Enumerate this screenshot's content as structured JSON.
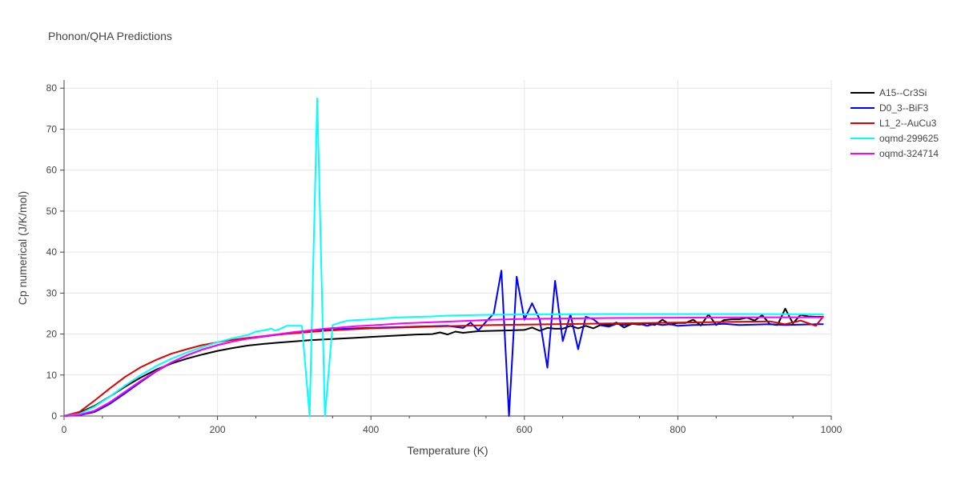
{
  "chart_data": {
    "type": "line",
    "title": "Phonon/QHA Predictions",
    "xlabel": "Temperature (K)",
    "ylabel": "Cp numerical (J/K/mol)",
    "xlim": [
      0,
      1000
    ],
    "ylim": [
      0,
      82
    ],
    "x_ticks": [
      0,
      200,
      400,
      600,
      800,
      1000
    ],
    "y_ticks": [
      0,
      10,
      20,
      30,
      40,
      50,
      60,
      70,
      80
    ],
    "grid": true,
    "legend_position": "top-right outside",
    "series": [
      {
        "name": "A15--Cr3Si",
        "color": "#000000",
        "x": [
          0,
          20,
          40,
          60,
          80,
          100,
          120,
          140,
          160,
          180,
          200,
          220,
          240,
          260,
          280,
          300,
          320,
          340,
          360,
          380,
          400,
          420,
          440,
          460,
          480,
          490,
          500,
          510,
          520,
          530,
          540,
          560,
          580,
          600,
          610,
          620,
          630,
          640,
          650,
          660,
          670,
          680,
          690,
          700,
          710,
          720,
          730,
          740,
          750,
          760,
          770,
          780,
          790,
          800,
          810,
          820,
          830,
          840,
          850,
          860,
          870,
          880,
          890,
          900,
          910,
          920,
          930,
          940,
          950,
          960,
          970,
          980,
          990
        ],
        "values": [
          0,
          0.8,
          2.5,
          4.8,
          7.2,
          9.4,
          11.3,
          12.8,
          14.0,
          15.0,
          15.9,
          16.6,
          17.2,
          17.6,
          17.9,
          18.2,
          18.5,
          18.7,
          18.9,
          19.1,
          19.3,
          19.5,
          19.7,
          19.9,
          20.0,
          20.4,
          19.9,
          20.6,
          20.3,
          20.5,
          20.7,
          20.8,
          20.9,
          21.0,
          21.6,
          20.8,
          21.5,
          21.3,
          21.3,
          22.0,
          21.4,
          22.0,
          21.4,
          22.3,
          22.2,
          22.8,
          21.6,
          22.5,
          22.3,
          22.6,
          22.2,
          23.5,
          22.3,
          22.7,
          22.7,
          23.5,
          22.1,
          24.8,
          22.2,
          23.4,
          23.6,
          23.6,
          24.0,
          23.3,
          24.6,
          22.4,
          22.2,
          26.2,
          22.6,
          24.7,
          24.3,
          24.2,
          24.2
        ]
      },
      {
        "name": "D0_3--BiF3",
        "color": "#0000ff",
        "x": [
          0,
          20,
          40,
          60,
          80,
          100,
          120,
          140,
          160,
          180,
          200,
          220,
          240,
          260,
          280,
          300,
          320,
          340,
          360,
          380,
          400,
          420,
          440,
          460,
          480,
          500,
          520,
          530,
          540,
          550,
          560,
          570,
          580,
          590,
          600,
          610,
          620,
          630,
          640,
          650,
          660,
          670,
          680,
          690,
          700,
          710,
          720,
          730,
          740,
          750,
          760,
          770,
          780,
          790,
          800,
          820,
          840,
          860,
          880,
          900,
          920,
          940,
          960,
          980,
          990
        ],
        "values": [
          0,
          0.2,
          1.0,
          3.0,
          5.6,
          8.3,
          10.9,
          13.0,
          14.8,
          16.2,
          17.3,
          18.2,
          18.9,
          19.4,
          19.9,
          20.3,
          20.7,
          21.0,
          21.2,
          21.4,
          21.5,
          21.6,
          21.7,
          21.8,
          21.9,
          22.0,
          21.5,
          22.8,
          20.9,
          23.0,
          25.0,
          35.5,
          0,
          34.0,
          23.5,
          27.5,
          23.5,
          11.8,
          33.0,
          18.3,
          24.8,
          16.3,
          24.2,
          23.6,
          22.1,
          21.8,
          22.5,
          22.2,
          22.5,
          22.5,
          22.0,
          22.5,
          22.2,
          22.4,
          22.0,
          22.2,
          22.3,
          22.5,
          22.2,
          22.3,
          22.4,
          22.2,
          22.3,
          22.4,
          22.4
        ]
      },
      {
        "name": "L1_2--AuCu3",
        "color": "#e00000",
        "x": [
          0,
          20,
          40,
          60,
          80,
          100,
          120,
          140,
          160,
          180,
          200,
          220,
          240,
          260,
          280,
          300,
          320,
          340,
          360,
          380,
          400,
          440,
          480,
          520,
          560,
          600,
          640,
          680,
          720,
          760,
          800,
          840,
          880,
          920,
          940,
          960,
          980,
          990
        ],
        "values": [
          0,
          1.0,
          3.8,
          6.8,
          9.6,
          11.9,
          13.7,
          15.2,
          16.3,
          17.3,
          18.0,
          18.6,
          19.1,
          19.5,
          19.9,
          20.2,
          20.5,
          20.8,
          21.0,
          21.2,
          21.4,
          21.6,
          21.8,
          22.0,
          22.2,
          22.3,
          22.4,
          22.5,
          22.6,
          22.7,
          22.8,
          22.9,
          23.0,
          23.1,
          22.4,
          23.3,
          22.0,
          24.4
        ]
      },
      {
        "name": "oqmd-299625",
        "color": "#00ffff",
        "x": [
          0,
          20,
          40,
          60,
          80,
          100,
          120,
          140,
          160,
          180,
          200,
          220,
          240,
          250,
          260,
          270,
          275,
          280,
          290,
          300,
          310,
          320,
          330,
          340,
          350,
          360,
          370,
          380,
          400,
          420,
          440,
          460,
          480,
          500,
          550,
          600,
          700,
          800,
          900,
          990
        ],
        "values": [
          0,
          0.5,
          2.3,
          4.8,
          7.5,
          10.0,
          12.2,
          14.0,
          15.5,
          16.8,
          18.0,
          19.0,
          19.8,
          20.6,
          20.9,
          21.3,
          20.9,
          21.1,
          22.0,
          22.0,
          22.0,
          0,
          77.5,
          0,
          22.2,
          22.8,
          23.3,
          23.4,
          23.6,
          23.9,
          24.1,
          24.2,
          24.3,
          24.5,
          24.7,
          24.8,
          24.9,
          24.9,
          24.9,
          24.8
        ]
      },
      {
        "name": "oqmd-324714",
        "color": "#ff00ff",
        "x": [
          0,
          20,
          40,
          60,
          80,
          100,
          120,
          140,
          160,
          180,
          200,
          220,
          240,
          260,
          280,
          300,
          320,
          340,
          360,
          380,
          400,
          440,
          480,
          520,
          560,
          600,
          650,
          700,
          800,
          900,
          990
        ],
        "values": [
          0,
          0.3,
          1.3,
          3.4,
          6.0,
          8.6,
          11.0,
          13.1,
          14.8,
          16.2,
          17.3,
          18.2,
          18.9,
          19.5,
          20.0,
          20.5,
          20.9,
          21.3,
          21.6,
          21.9,
          22.1,
          22.6,
          22.9,
          23.2,
          23.5,
          23.7,
          23.8,
          23.9,
          24.0,
          24.1,
          24.1
        ]
      }
    ]
  }
}
